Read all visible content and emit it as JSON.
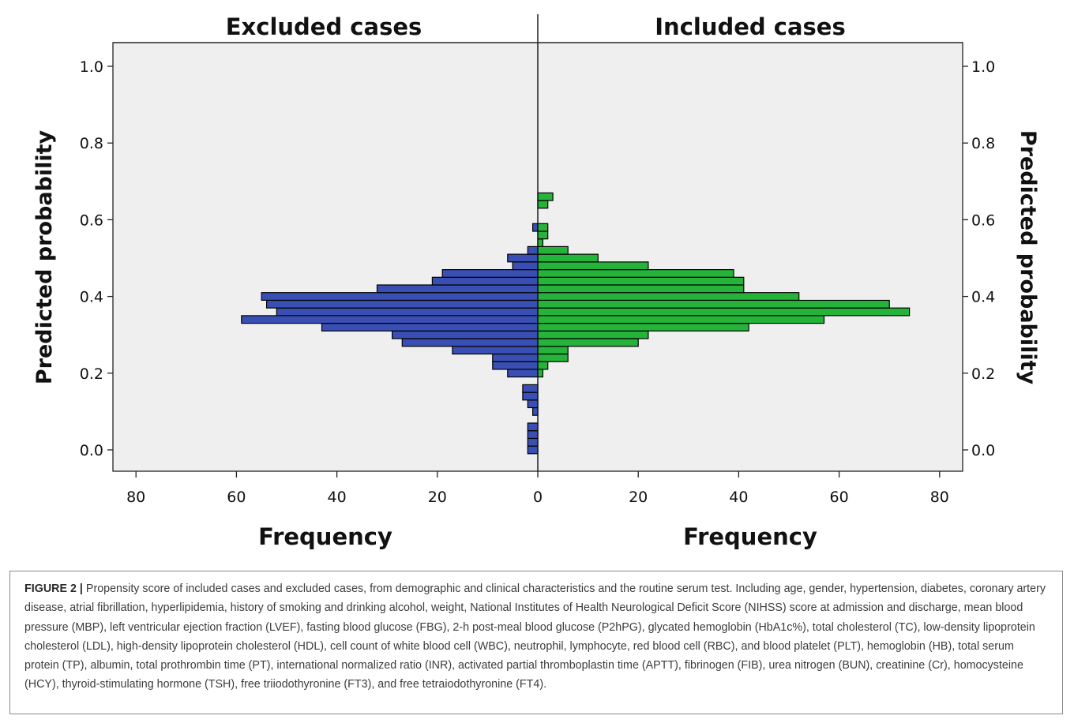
{
  "chart_data": {
    "type": "bar",
    "orientation": "horizontal",
    "layout": "population-pyramid",
    "y": [
      0.0,
      0.02,
      0.04,
      0.06,
      0.08,
      0.1,
      0.12,
      0.14,
      0.16,
      0.18,
      0.2,
      0.22,
      0.24,
      0.26,
      0.28,
      0.3,
      0.32,
      0.34,
      0.36,
      0.38,
      0.4,
      0.42,
      0.44,
      0.46,
      0.48,
      0.5,
      0.52,
      0.54,
      0.56,
      0.58,
      0.6,
      0.62,
      0.64,
      0.66,
      0.68,
      0.7,
      0.72,
      0.74,
      0.76,
      0.78,
      0.8,
      0.82,
      0.84,
      0.86,
      0.88,
      0.9,
      0.92,
      0.94,
      0.96,
      0.98,
      1.0
    ],
    "series": [
      {
        "name": "Excluded cases",
        "color": "#3a4fb3",
        "values": [
          2,
          2,
          2,
          2,
          0,
          1,
          2,
          3,
          3,
          0,
          6,
          9,
          9,
          17,
          27,
          29,
          43,
          59,
          52,
          54,
          55,
          32,
          21,
          19,
          5,
          6,
          2,
          0,
          0,
          1,
          0,
          0,
          0,
          0,
          0,
          0,
          0,
          0,
          0,
          0,
          0,
          0,
          0,
          0,
          0,
          0,
          0,
          0,
          0,
          0,
          0
        ]
      },
      {
        "name": "Included cases",
        "color": "#25b33a",
        "values": [
          0,
          0,
          0,
          0,
          0,
          0,
          0,
          0,
          0,
          0,
          1,
          2,
          6,
          6,
          20,
          22,
          42,
          57,
          74,
          70,
          52,
          41,
          41,
          39,
          22,
          12,
          6,
          1,
          2,
          2,
          0,
          0,
          2,
          3,
          0,
          0,
          0,
          0,
          0,
          0,
          0,
          0,
          0,
          0,
          0,
          0,
          0,
          0,
          0,
          0,
          0
        ]
      }
    ],
    "panel_titles": [
      "Excluded cases",
      "Included cases"
    ],
    "xlabel": "Frequency",
    "ylabel": "Predicted probability",
    "xlim": [
      0,
      80
    ],
    "ylim": [
      -0.06,
      1.05
    ],
    "x_ticks": [
      "80",
      "60",
      "40",
      "20",
      "0",
      "20",
      "40",
      "60",
      "80"
    ],
    "y_ticks": [
      "0.0",
      "0.2",
      "0.4",
      "0.6",
      "0.8",
      "1.0"
    ],
    "plot_background": "#efefef",
    "grid": false
  },
  "caption": {
    "label": "FIGURE 2 |",
    "text": "Propensity score of included cases and excluded cases, from demographic and clinical characteristics and the routine serum test. Including age, gender, hypertension, diabetes, coronary artery disease, atrial fibrillation, hyperlipidemia, history of smoking and drinking alcohol, weight, National Institutes of Health Neurological Deficit Score (NIHSS) score at admission and discharge, mean blood pressure (MBP), left ventricular ejection fraction (LVEF), fasting blood glucose (FBG), 2-h post-meal blood glucose (P2hPG), glycated hemoglobin (HbA1c%), total cholesterol (TC), low-density lipoprotein cholesterol (LDL), high-density lipoprotein cholesterol (HDL), cell count of white blood cell (WBC), neutrophil, lymphocyte, red blood cell (RBC), and blood platelet (PLT), hemoglobin (HB), total serum protein (TP), albumin, total prothrombin time (PT), international normalized ratio (INR), activated partial thromboplastin time (APTT), fibrinogen (FIB), urea nitrogen (BUN), creatinine (Cr), homocysteine (HCY), thyroid-stimulating hormone (TSH), free triiodothyronine (FT3), and free tetraiodothyronine (FT4)."
  }
}
